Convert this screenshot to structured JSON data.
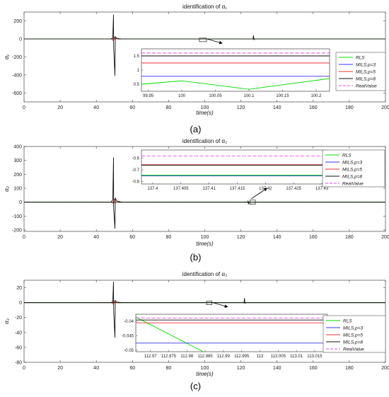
{
  "colors": {
    "RLS": "#00dd00",
    "MILS_p3": "#3333ee",
    "MILS_p5": "#ee3333",
    "MILS_p8": "#111111",
    "RealValue": "#ee44ee"
  },
  "chart_data": [
    {
      "type": "line",
      "panel_label": "(a)",
      "title": "identification of α₁",
      "xlabel": "time(s)",
      "ylabel": "α₁",
      "xlim": [
        0,
        200
      ],
      "ylim": [
        -700,
        300
      ],
      "xticks": [
        0,
        20,
        40,
        60,
        80,
        100,
        120,
        140,
        160,
        180,
        200
      ],
      "yticks": [
        -600,
        -400,
        -200,
        0,
        200
      ],
      "grid": false,
      "legend": {
        "placement": "right",
        "entries": [
          "RLS",
          "MILS,p=3",
          "MILS,p=5",
          "MILS,p=8",
          "RealValue"
        ]
      },
      "transient": {
        "x": 50,
        "max": 270,
        "min": -410
      },
      "glitch": {
        "x": 127,
        "max": 40,
        "min": -8
      },
      "zoom_box": {
        "x_range": [
          97,
          101
        ],
        "y_range": [
          -10,
          10
        ]
      },
      "inset": {
        "xlim": [
          99.94,
          100.22
        ],
        "ylim": [
          0.25,
          1.75
        ],
        "xticks": [
          99.95,
          100,
          100.05,
          100.1,
          100.15,
          100.2
        ],
        "xtick_labels": [
          "99.95",
          "100",
          "100.05",
          "100.1",
          "100.15",
          "100.2"
        ],
        "yticks": [
          0.5,
          1,
          1.5
        ],
        "ytick_labels": [
          "0.5",
          "1",
          "1.5"
        ],
        "series": [
          {
            "name": "RLS",
            "x": [
              99.94,
              100.0,
              100.1,
              100.22
            ],
            "y": [
              0.5,
              0.62,
              0.32,
              0.7
            ]
          },
          {
            "name": "MILS,p=3",
            "x": [
              99.94,
              100.22
            ],
            "y": [
              0.78,
              0.78
            ]
          },
          {
            "name": "MILS,p=5",
            "x": [
              99.94,
              100.22
            ],
            "y": [
              1.25,
              1.25
            ]
          },
          {
            "name": "MILS,p=8",
            "x": [
              99.94,
              100.22
            ],
            "y": [
              1.5,
              1.5
            ]
          },
          {
            "name": "RealValue",
            "x": [
              99.94,
              100.22
            ],
            "y": [
              1.6,
              1.6
            ]
          }
        ]
      }
    },
    {
      "type": "line",
      "panel_label": "(b)",
      "title": "identification of α₂",
      "xlabel": "time(s)",
      "ylabel": "α₂",
      "xlim": [
        0,
        200
      ],
      "ylim": [
        -210,
        400
      ],
      "xticks": [
        0,
        20,
        40,
        60,
        80,
        100,
        120,
        140,
        160,
        180,
        200
      ],
      "yticks": [
        -200,
        -100,
        0,
        100,
        200,
        300,
        400
      ],
      "grid": false,
      "legend": {
        "placement": "right",
        "entries": [
          "RLS",
          "MILS,p=3",
          "MILS,p=5",
          "MILS,p=8",
          "RealValue"
        ]
      },
      "transient": {
        "x": 50,
        "max": 320,
        "min": -190
      },
      "glitch": {
        "x": 124,
        "max": 10,
        "min": -15
      },
      "zoom_box": {
        "x_range": [
          125,
          128
        ],
        "y_range": [
          -15,
          15
        ]
      },
      "inset": {
        "xlim": [
          137.398,
          137.431
        ],
        "ylim": [
          -0.82,
          -0.53
        ],
        "xticks": [
          137.4,
          137.405,
          137.41,
          137.415,
          137.42,
          137.425,
          137.43
        ],
        "xtick_labels": [
          "137.4",
          "137.405",
          "137.41",
          "137.415",
          "137.42",
          "137.425",
          "137.43"
        ],
        "yticks": [
          -0.8,
          -0.7,
          -0.6
        ],
        "ytick_labels": [
          "-0.8",
          "-0.7",
          "-0.6"
        ],
        "series": [
          {
            "name": "RLS",
            "x": [
              137.398,
              137.431
            ],
            "y": [
              -0.745,
              -0.745
            ]
          },
          {
            "name": "MILS,p=3",
            "x": [
              137.398,
              137.431
            ],
            "y": [
              -0.75,
              -0.75
            ]
          },
          {
            "name": "MILS,p=5",
            "x": [
              137.398,
              137.431
            ],
            "y": [
              -0.655,
              -0.655
            ]
          },
          {
            "name": "MILS,p=8",
            "x": [
              137.398,
              137.431
            ],
            "y": [
              -0.66,
              -0.66
            ]
          },
          {
            "name": "RealValue",
            "x": [
              137.398,
              137.431
            ],
            "y": [
              -0.58,
              -0.58
            ]
          }
        ]
      }
    },
    {
      "type": "line",
      "panel_label": "(c)",
      "title": "identification of α₃",
      "xlabel": "time(s)",
      "ylabel": "α₃",
      "xlim": [
        0,
        200
      ],
      "ylim": [
        -80,
        30
      ],
      "xticks": [
        0,
        20,
        40,
        60,
        80,
        100,
        120,
        140,
        160,
        180,
        200
      ],
      "yticks": [
        -80,
        -60,
        -40,
        -20,
        0,
        20
      ],
      "grid": false,
      "legend": {
        "placement": "right",
        "entries": [
          "RLS",
          "MILS,p=3",
          "MILS,p=5",
          "MILS,p=8",
          "RealValue"
        ]
      },
      "transient": {
        "x": 50,
        "max": 28,
        "min": -47
      },
      "glitch": {
        "x": 122,
        "max": 6,
        "min": -1
      },
      "zoom_box": {
        "x_range": [
          101,
          104
        ],
        "y_range": [
          -2,
          2
        ]
      },
      "inset": {
        "xlim": [
          112.966,
          113.0185
        ],
        "ylim": [
          -0.0505,
          -0.0375
        ],
        "xticks": [
          112.97,
          112.975,
          112.98,
          112.985,
          112.99,
          112.995,
          113,
          113.005,
          113.01,
          113.015
        ],
        "xtick_labels": [
          "112.97",
          "112.975",
          "112.98",
          "112.985",
          "112.99",
          "112.995",
          "113",
          "113.005",
          "113.01",
          "113.015"
        ],
        "yticks": [
          -0.05,
          -0.045,
          -0.04
        ],
        "ytick_labels": [
          "-0.05",
          "-0.045",
          "-0.04"
        ],
        "series": [
          {
            "name": "RLS",
            "x": [
              112.966,
              112.9845
            ],
            "y": [
              -0.0385,
              -0.0505
            ]
          },
          {
            "name": "MILS,p=3",
            "x": [
              112.966,
              113.0185
            ],
            "y": [
              -0.0475,
              -0.0475
            ]
          },
          {
            "name": "MILS,p=5",
            "x": [
              112.966,
              113.0185
            ],
            "y": [
              -0.0405,
              -0.0405
            ]
          },
          {
            "name": "MILS,p=8",
            "x": [
              112.966,
              113.0185
            ],
            "y": [
              -0.0395,
              -0.0395
            ]
          },
          {
            "name": "RealValue",
            "x": [
              112.966,
              113.0185
            ],
            "y": [
              -0.0388,
              -0.0388
            ]
          }
        ]
      }
    }
  ]
}
